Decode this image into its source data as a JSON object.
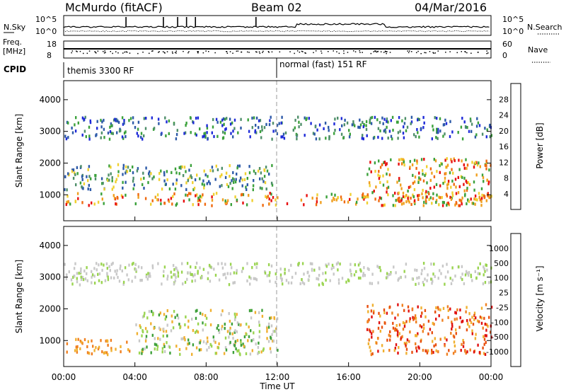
{
  "header": {
    "station": "McMurdo (fitACF)",
    "beam": "Beam 02",
    "date": "04/Mar/2016"
  },
  "aux_panels": {
    "nsky_label": "N.Sky",
    "nsearch_label": "N.Search",
    "nsky_ticks": [
      "10^5",
      "10^0"
    ],
    "nsearch_ticks": [
      "10^5",
      "10^0"
    ],
    "freq_label_1": "Freq.",
    "freq_label_2": "[MHz]",
    "freq_ticks": [
      "18",
      "8"
    ],
    "nave_label": "Nave",
    "nave_ticks": [
      "60",
      "0"
    ],
    "cpid_label": "CPID",
    "cpid_modes": [
      {
        "name": "themis 3300 RF",
        "start_hour": 0,
        "end_hour": 12
      },
      {
        "name": "normal (fast) 151 RF",
        "start_hour": 12,
        "end_hour": 24
      }
    ]
  },
  "chart_data": [
    {
      "type": "heatmap",
      "panel": "power",
      "xlabel": "",
      "ylabel": "Slant Range [km]",
      "xlim": [
        0,
        24
      ],
      "ylim": [
        180,
        4600
      ],
      "yticks": [
        1000,
        2000,
        3000,
        4000
      ],
      "colorbar": {
        "label": "Power [dB]",
        "ticks": [
          "4",
          "8",
          "12",
          "16",
          "20",
          "24",
          "28"
        ],
        "colors": [
          "#1f2bd8",
          "#2d5aa8",
          "#4f8f6a",
          "#3ba13b",
          "#f0d030",
          "#f0a020",
          "#f06a10",
          "#e81010"
        ]
      },
      "regions": [
        {
          "name": "E/near-range echoes",
          "x": [
            0,
            24
          ],
          "y": [
            700,
            1100
          ],
          "level": "high"
        },
        {
          "name": "F-region band",
          "x": [
            0,
            12
          ],
          "y": [
            1200,
            2000
          ],
          "level": "medium"
        },
        {
          "name": "far-range band",
          "x": [
            0,
            24
          ],
          "y": [
            2800,
            3500
          ],
          "level": "low"
        },
        {
          "name": "evening enhancement",
          "x": [
            17,
            24
          ],
          "y": [
            700,
            2200
          ],
          "level": "high"
        }
      ]
    },
    {
      "type": "heatmap",
      "panel": "velocity",
      "xlabel": "Time UT",
      "ylabel": "Slant Range [km]",
      "xlim": [
        0,
        24
      ],
      "ylim": [
        180,
        4600
      ],
      "xticks": [
        "00:00",
        "04:00",
        "08:00",
        "12:00",
        "16:00",
        "20:00",
        "00:00"
      ],
      "yticks": [
        1000,
        2000,
        3000,
        4000
      ],
      "colorbar": {
        "label": "Velocity [m s⁻¹]",
        "ticks": [
          "1000",
          "500",
          "100",
          "25",
          "-25",
          "-100",
          "-500",
          "-1000"
        ],
        "colors": [
          "#1a3fc8",
          "#2f6aa0",
          "#3ea03a",
          "#9ad450",
          "#c8c8c8",
          "#f0b030",
          "#f08020",
          "#e85010",
          "#e01010"
        ]
      },
      "regions": [
        {
          "name": "negative velocity near range",
          "x": [
            0,
            4
          ],
          "y": [
            600,
            1100
          ],
          "level": "orange"
        },
        {
          "name": "mixed low velocity",
          "x": [
            4,
            12
          ],
          "y": [
            600,
            2000
          ],
          "level": "green-grey"
        },
        {
          "name": "evening negative flow",
          "x": [
            17,
            24
          ],
          "y": [
            600,
            2200
          ],
          "level": "orange-red"
        },
        {
          "name": "far-range low velocity",
          "x": [
            0,
            24
          ],
          "y": [
            2800,
            3500
          ],
          "level": "grey"
        }
      ]
    }
  ],
  "colors": {
    "axis": "#000000",
    "ground_scatter": "#b0b0b0"
  }
}
